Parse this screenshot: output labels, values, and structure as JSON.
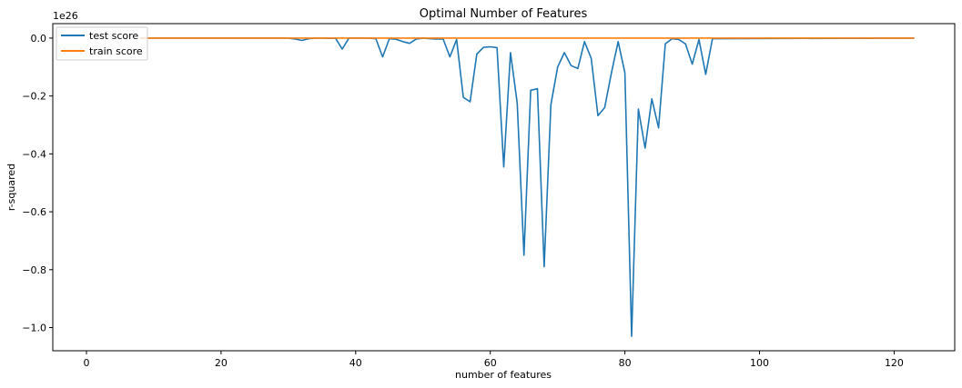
{
  "chart_data": {
    "type": "line",
    "title": "Optimal Number of Features",
    "xlabel": "number of features",
    "ylabel": "r-squared",
    "offset_text": "1e26",
    "xlim": [
      -5,
      129
    ],
    "ylim": [
      -1.08,
      0.05
    ],
    "xticks": [
      0,
      20,
      40,
      60,
      80,
      100,
      120
    ],
    "yticks": [
      0.0,
      -0.2,
      -0.4,
      -0.6,
      -0.8,
      -1.0
    ],
    "xtick_labels": [
      "0",
      "20",
      "40",
      "60",
      "80",
      "100",
      "120"
    ],
    "ytick_labels": [
      "0.0",
      "−0.2",
      "−0.4",
      "−0.6",
      "−0.8",
      "−1.0"
    ],
    "legend_location": "top-left",
    "grid": false,
    "series": [
      {
        "name": "test score",
        "color": "#1f77b4",
        "x": [
          8,
          30,
          31,
          32,
          33,
          34,
          35,
          36,
          37,
          38,
          39,
          40,
          41,
          42,
          43,
          44,
          45,
          46,
          47,
          48,
          49,
          50,
          51,
          52,
          53,
          54,
          55,
          56,
          57,
          58,
          59,
          60,
          61,
          62,
          63,
          64,
          65,
          66,
          67,
          68,
          69,
          70,
          71,
          72,
          73,
          74,
          75,
          76,
          77,
          78,
          79,
          80,
          81,
          82,
          83,
          84,
          85,
          86,
          87,
          88,
          89,
          90,
          91,
          92,
          93,
          123
        ],
        "y": [
          0.0,
          0.0,
          -0.003,
          -0.008,
          -0.002,
          0.0,
          0.0,
          -0.001,
          0.0,
          -0.038,
          0.0,
          0.0,
          0.0,
          0.0,
          -0.002,
          -0.065,
          -0.002,
          -0.004,
          -0.012,
          -0.018,
          -0.003,
          0.0,
          -0.002,
          -0.003,
          -0.003,
          -0.065,
          -0.005,
          -0.205,
          -0.22,
          -0.055,
          -0.032,
          -0.03,
          -0.033,
          -0.445,
          -0.05,
          -0.225,
          -0.75,
          -0.18,
          -0.175,
          -0.79,
          -0.23,
          -0.1,
          -0.05,
          -0.095,
          -0.105,
          -0.012,
          -0.07,
          -0.268,
          -0.24,
          -0.12,
          -0.012,
          -0.12,
          -1.03,
          -0.245,
          -0.38,
          -0.21,
          -0.31,
          -0.02,
          -0.002,
          -0.005,
          -0.02,
          -0.09,
          -0.005,
          -0.125,
          -0.002,
          0.0
        ]
      },
      {
        "name": "train score",
        "color": "#ff7f0e",
        "x": [
          8,
          123
        ],
        "y": [
          0.0,
          0.0
        ]
      }
    ]
  }
}
